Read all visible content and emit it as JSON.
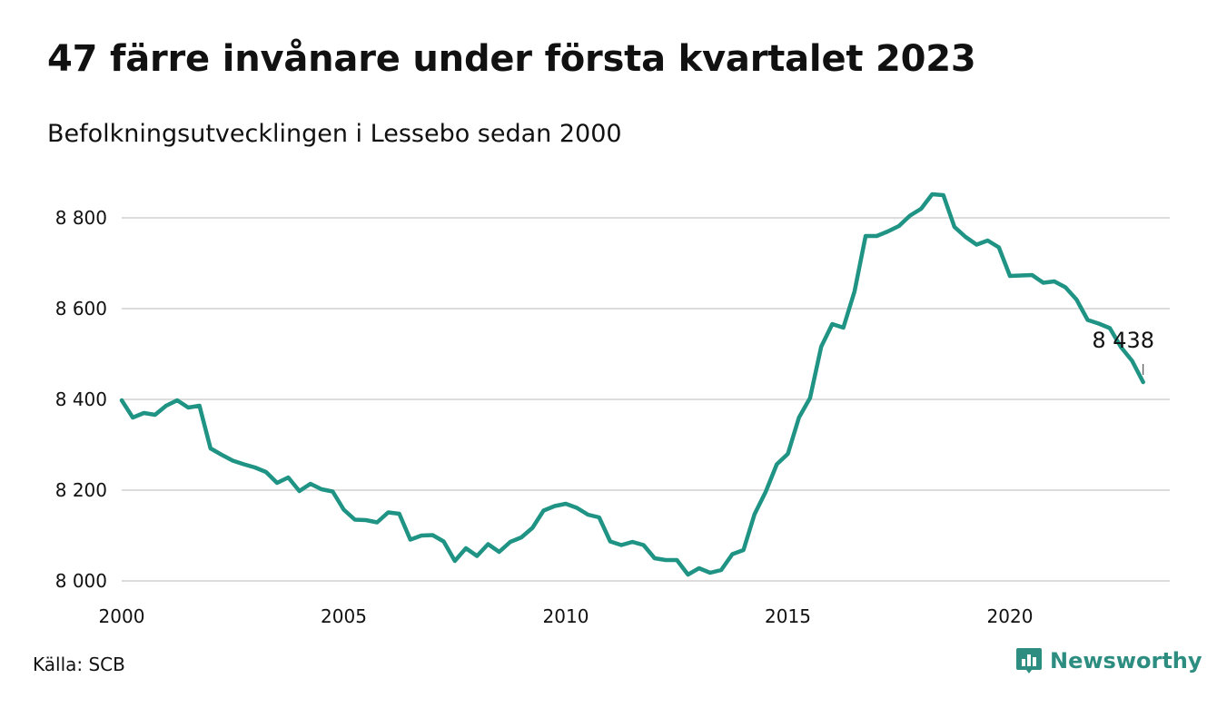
{
  "chart_data": {
    "type": "line",
    "title": "47 färre invånare under första kvartalet 2023",
    "subtitle": "Befolkningsutvecklingen i Lessebo sedan 2000",
    "xlabel": "",
    "ylabel": "",
    "ylim": [
      8000,
      8870
    ],
    "xlim": [
      2000,
      2024
    ],
    "y_ticks": [
      8000,
      8200,
      8400,
      8600,
      8800
    ],
    "y_tick_labels": [
      "8 000",
      "8 200",
      "8 400",
      "8 600",
      "8 800"
    ],
    "x_ticks": [
      2000,
      2005,
      2010,
      2015,
      2020
    ],
    "x_tick_labels": [
      "2000",
      "2005",
      "2010",
      "2015",
      "2020"
    ],
    "grid": "horizontal",
    "legend": "none",
    "series": [
      {
        "color": "#1f9384",
        "points": [
          [
            2000.0,
            8398
          ],
          [
            2000.25,
            8360
          ],
          [
            2000.5,
            8370
          ],
          [
            2000.75,
            8366
          ],
          [
            2001.0,
            8386
          ],
          [
            2001.25,
            8398
          ],
          [
            2001.5,
            8382
          ],
          [
            2001.75,
            8386
          ],
          [
            2002.0,
            8292
          ],
          [
            2002.25,
            8278
          ],
          [
            2002.5,
            8265
          ],
          [
            2002.75,
            8257
          ],
          [
            2003.0,
            8250
          ],
          [
            2003.25,
            8240
          ],
          [
            2003.5,
            8216
          ],
          [
            2003.75,
            8228
          ],
          [
            2004.0,
            8198
          ],
          [
            2004.25,
            8214
          ],
          [
            2004.5,
            8202
          ],
          [
            2004.75,
            8197
          ],
          [
            2005.0,
            8157
          ],
          [
            2005.25,
            8135
          ],
          [
            2005.5,
            8134
          ],
          [
            2005.75,
            8129
          ],
          [
            2006.0,
            8151
          ],
          [
            2006.25,
            8148
          ],
          [
            2006.5,
            8091
          ],
          [
            2006.75,
            8100
          ],
          [
            2007.0,
            8101
          ],
          [
            2007.25,
            8087
          ],
          [
            2007.5,
            8044
          ],
          [
            2007.75,
            8072
          ],
          [
            2008.0,
            8055
          ],
          [
            2008.25,
            8081
          ],
          [
            2008.5,
            8064
          ],
          [
            2008.75,
            8086
          ],
          [
            2009.0,
            8096
          ],
          [
            2009.25,
            8117
          ],
          [
            2009.5,
            8155
          ],
          [
            2009.75,
            8165
          ],
          [
            2010.0,
            8170
          ],
          [
            2010.25,
            8161
          ],
          [
            2010.5,
            8146
          ],
          [
            2010.75,
            8140
          ],
          [
            2011.0,
            8087
          ],
          [
            2011.25,
            8079
          ],
          [
            2011.5,
            8086
          ],
          [
            2011.75,
            8079
          ],
          [
            2012.0,
            8050
          ],
          [
            2012.25,
            8046
          ],
          [
            2012.5,
            8046
          ],
          [
            2012.75,
            8014
          ],
          [
            2013.0,
            8028
          ],
          [
            2013.25,
            8018
          ],
          [
            2013.5,
            8024
          ],
          [
            2013.75,
            8059
          ],
          [
            2014.0,
            8068
          ],
          [
            2014.25,
            8147
          ],
          [
            2014.5,
            8196
          ],
          [
            2014.75,
            8257
          ],
          [
            2015.0,
            8280
          ],
          [
            2015.25,
            8360
          ],
          [
            2015.5,
            8403
          ],
          [
            2015.75,
            8516
          ],
          [
            2016.0,
            8566
          ],
          [
            2016.25,
            8558
          ],
          [
            2016.5,
            8638
          ],
          [
            2016.75,
            8760
          ],
          [
            2017.0,
            8760
          ],
          [
            2017.25,
            8770
          ],
          [
            2017.5,
            8782
          ],
          [
            2017.75,
            8805
          ],
          [
            2018.0,
            8820
          ],
          [
            2018.25,
            8852
          ],
          [
            2018.5,
            8850
          ],
          [
            2018.75,
            8780
          ],
          [
            2019.0,
            8758
          ],
          [
            2019.25,
            8741
          ],
          [
            2019.5,
            8750
          ],
          [
            2019.75,
            8735
          ],
          [
            2020.0,
            8672
          ],
          [
            2020.25,
            8673
          ],
          [
            2020.5,
            8674
          ],
          [
            2020.75,
            8657
          ],
          [
            2021.0,
            8660
          ],
          [
            2021.25,
            8647
          ],
          [
            2021.5,
            8620
          ],
          [
            2021.75,
            8575
          ],
          [
            2022.0,
            8567
          ],
          [
            2022.25,
            8557
          ],
          [
            2022.5,
            8515
          ],
          [
            2022.75,
            8485
          ],
          [
            2023.0,
            8438
          ]
        ]
      }
    ],
    "annotations": [
      {
        "x": 2023.0,
        "y": 8438,
        "label": "8 438"
      }
    ]
  },
  "source": "Källa: SCB",
  "brand": {
    "name": "Newsworthy",
    "color": "#2c8d80",
    "icon": "newsworthy-logo-icon"
  }
}
